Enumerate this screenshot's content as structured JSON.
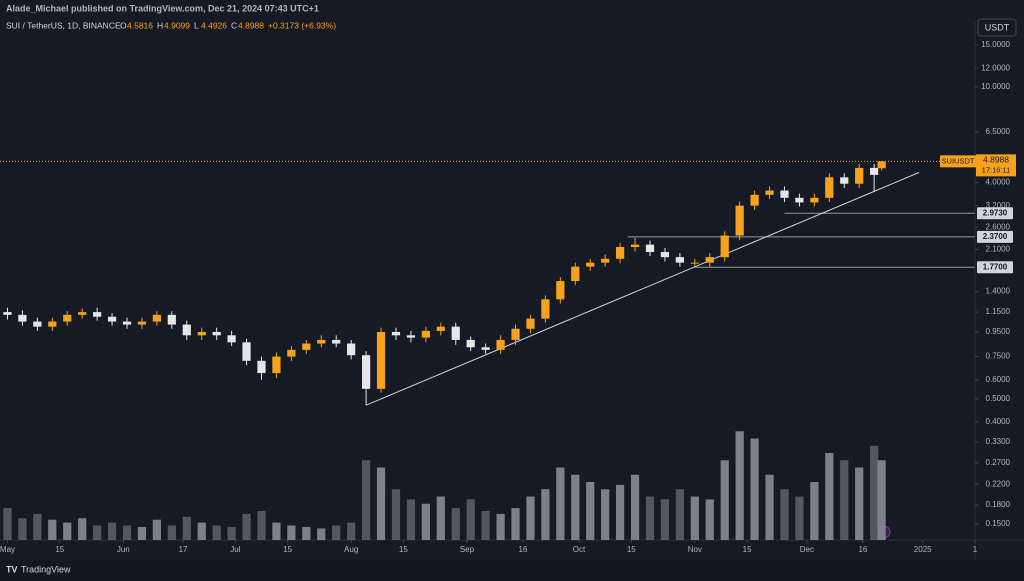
{
  "header": {
    "publisher": "Alade_Michael published on TradingView.com, Dec 21, 2024 07:43 UTC+1",
    "brand": "TradingView"
  },
  "chart_data": {
    "type": "candlestick",
    "title": "SUI / TetherUS, 1D, BINANCE",
    "symbol": "SUIUSDT",
    "currency": "USDT",
    "countdown": "17:16:11",
    "ohlc_prefix": {
      "open": "O",
      "high": "H",
      "low": "L",
      "close": "C"
    },
    "change_label": "+0.3173 (+6.93%)",
    "up_color": "#f7a21b",
    "down_color": "#e6e6e6",
    "log_scale": true,
    "x": [
      "2024-05-01",
      "2024-05-05",
      "2024-05-09",
      "2024-05-13",
      "2024-05-17",
      "2024-05-21",
      "2024-05-25",
      "2024-05-29",
      "2024-06-02",
      "2024-06-06",
      "2024-06-10",
      "2024-06-14",
      "2024-06-18",
      "2024-06-22",
      "2024-06-26",
      "2024-06-30",
      "2024-07-04",
      "2024-07-08",
      "2024-07-12",
      "2024-07-16",
      "2024-07-20",
      "2024-07-24",
      "2024-07-28",
      "2024-08-01",
      "2024-08-05",
      "2024-08-09",
      "2024-08-13",
      "2024-08-17",
      "2024-08-21",
      "2024-08-25",
      "2024-08-29",
      "2024-09-02",
      "2024-09-06",
      "2024-09-10",
      "2024-09-14",
      "2024-09-18",
      "2024-09-22",
      "2024-09-26",
      "2024-09-30",
      "2024-10-04",
      "2024-10-08",
      "2024-10-12",
      "2024-10-16",
      "2024-10-20",
      "2024-10-24",
      "2024-10-28",
      "2024-11-01",
      "2024-11-05",
      "2024-11-09",
      "2024-11-13",
      "2024-11-17",
      "2024-11-21",
      "2024-11-25",
      "2024-11-29",
      "2024-12-03",
      "2024-12-07",
      "2024-12-11",
      "2024-12-15",
      "2024-12-19",
      "2024-12-21"
    ],
    "open": [
      1.15,
      1.12,
      1.05,
      1.0,
      1.05,
      1.12,
      1.15,
      1.1,
      1.05,
      1.02,
      1.05,
      1.12,
      1.02,
      0.92,
      0.95,
      0.92,
      0.86,
      0.72,
      0.64,
      0.75,
      0.8,
      0.85,
      0.88,
      0.85,
      0.76,
      0.55,
      0.95,
      0.92,
      0.9,
      0.96,
      1.0,
      0.88,
      0.82,
      0.8,
      0.88,
      0.98,
      1.08,
      1.3,
      1.55,
      1.78,
      1.85,
      1.92,
      2.15,
      2.2,
      2.05,
      1.95,
      1.85,
      1.85,
      1.95,
      2.4,
      3.2,
      3.55,
      3.7,
      3.45,
      3.3,
      3.45,
      4.2,
      3.95,
      4.6,
      4.5816
    ],
    "high": [
      1.2,
      1.17,
      1.09,
      1.09,
      1.16,
      1.19,
      1.2,
      1.14,
      1.09,
      1.09,
      1.16,
      1.16,
      1.06,
      0.99,
      0.99,
      0.96,
      0.89,
      0.75,
      0.78,
      0.83,
      0.88,
      0.92,
      0.92,
      0.88,
      0.79,
      0.99,
      0.99,
      0.96,
      1.0,
      1.04,
      1.04,
      0.91,
      0.85,
      0.92,
      1.02,
      1.12,
      1.35,
      1.61,
      1.85,
      1.92,
      2.0,
      2.24,
      2.35,
      2.29,
      2.13,
      2.03,
      1.92,
      2.03,
      2.5,
      3.33,
      3.69,
      3.85,
      3.85,
      3.59,
      3.59,
      4.37,
      4.37,
      4.78,
      4.78,
      4.9099
    ],
    "low": [
      1.07,
      1.01,
      0.96,
      0.96,
      1.01,
      1.08,
      1.06,
      1.01,
      0.98,
      0.98,
      1.01,
      0.98,
      0.88,
      0.88,
      0.88,
      0.83,
      0.69,
      0.6,
      0.61,
      0.72,
      0.77,
      0.82,
      0.82,
      0.73,
      0.47,
      0.53,
      0.88,
      0.86,
      0.86,
      0.92,
      0.84,
      0.79,
      0.77,
      0.77,
      0.84,
      0.94,
      1.04,
      1.25,
      1.49,
      1.71,
      1.78,
      1.84,
      2.06,
      1.97,
      1.87,
      1.78,
      1.78,
      1.78,
      1.87,
      2.3,
      3.07,
      3.41,
      3.31,
      3.17,
      3.17,
      3.31,
      3.79,
      3.79,
      3.65,
      4.4926
    ],
    "close": [
      1.12,
      1.05,
      1.0,
      1.05,
      1.12,
      1.15,
      1.1,
      1.05,
      1.02,
      1.05,
      1.12,
      1.02,
      0.92,
      0.95,
      0.92,
      0.86,
      0.72,
      0.64,
      0.75,
      0.8,
      0.85,
      0.88,
      0.85,
      0.76,
      0.55,
      0.95,
      0.92,
      0.9,
      0.96,
      1.0,
      0.88,
      0.82,
      0.8,
      0.88,
      0.98,
      1.08,
      1.3,
      1.55,
      1.78,
      1.85,
      1.92,
      2.15,
      2.2,
      2.05,
      1.95,
      1.85,
      1.85,
      1.95,
      2.4,
      3.2,
      3.55,
      3.7,
      3.45,
      3.3,
      3.45,
      4.2,
      3.95,
      4.6,
      4.3,
      4.8988
    ],
    "volume": [
      22,
      15,
      18,
      14,
      12,
      15,
      10,
      12,
      10,
      9,
      14,
      10,
      16,
      12,
      10,
      9,
      18,
      20,
      12,
      10,
      9,
      8,
      10,
      12,
      55,
      50,
      35,
      28,
      25,
      30,
      22,
      28,
      20,
      18,
      22,
      30,
      35,
      50,
      45,
      40,
      35,
      38,
      45,
      30,
      28,
      35,
      30,
      28,
      55,
      75,
      70,
      45,
      35,
      30,
      40,
      60,
      55,
      50,
      65,
      55
    ],
    "volume_lim": [
      0,
      100
    ],
    "xlim": [
      "2024-04-29",
      "2025-01-15"
    ],
    "xticks": [
      {
        "value": "2024-05-01",
        "label": "May"
      },
      {
        "value": "2024-05-15",
        "label": "15"
      },
      {
        "value": "2024-06-01",
        "label": "Jun"
      },
      {
        "value": "2024-06-17",
        "label": "17"
      },
      {
        "value": "2024-07-01",
        "label": "Jul"
      },
      {
        "value": "2024-07-15",
        "label": "15"
      },
      {
        "value": "2024-08-01",
        "label": "Aug"
      },
      {
        "value": "2024-08-15",
        "label": "15"
      },
      {
        "value": "2024-09-01",
        "label": "Sep"
      },
      {
        "value": "2024-09-16",
        "label": "16"
      },
      {
        "value": "2024-10-01",
        "label": "Oct"
      },
      {
        "value": "2024-10-15",
        "label": "15"
      },
      {
        "value": "2024-11-01",
        "label": "Nov"
      },
      {
        "value": "2024-11-15",
        "label": "15"
      },
      {
        "value": "2024-12-01",
        "label": "Dec"
      },
      {
        "value": "2024-12-16",
        "label": "16"
      },
      {
        "value": "2025-01-01",
        "label": "2025"
      },
      {
        "value": "2025-01-15",
        "label": "1"
      }
    ],
    "ylim": [
      0.1286,
      18.7
    ],
    "yticks": [
      {
        "value": 15,
        "label": "15.0000"
      },
      {
        "value": 12,
        "label": "12.0000"
      },
      {
        "value": 10,
        "label": "10.0000"
      },
      {
        "value": 6.5,
        "label": "6.5000"
      },
      {
        "value": 4,
        "label": "4.0000"
      },
      {
        "value": 3.2,
        "label": "3.2000"
      },
      {
        "value": 2.6,
        "label": "2.6000"
      },
      {
        "value": 2.1,
        "label": "2.1000"
      },
      {
        "value": 1.4,
        "label": "1.4000"
      },
      {
        "value": 1.15,
        "label": "1.1500"
      },
      {
        "value": 0.95,
        "label": "0.9500"
      },
      {
        "value": 0.75,
        "label": "0.7500"
      },
      {
        "value": 0.6,
        "label": "0.6000"
      },
      {
        "value": 0.5,
        "label": "0.5000"
      },
      {
        "value": 0.4,
        "label": "0.4000"
      },
      {
        "value": 0.33,
        "label": "0.3300"
      },
      {
        "value": 0.27,
        "label": "0.2700"
      },
      {
        "value": 0.22,
        "label": "0.2200"
      },
      {
        "value": 0.18,
        "label": "0.1800"
      },
      {
        "value": 0.15,
        "label": "0.1500"
      }
    ],
    "levels": [
      {
        "value": 2.973,
        "label": "2.9730",
        "from": "2024-11-25"
      },
      {
        "value": 2.37,
        "label": "2.3700",
        "from": "2024-10-14"
      },
      {
        "value": 1.77,
        "label": "1.7700",
        "from": "2024-11-01"
      }
    ],
    "trendline": {
      "x": [
        "2024-08-05",
        "2024-12-31"
      ],
      "y": [
        0.47,
        4.4
      ]
    }
  }
}
